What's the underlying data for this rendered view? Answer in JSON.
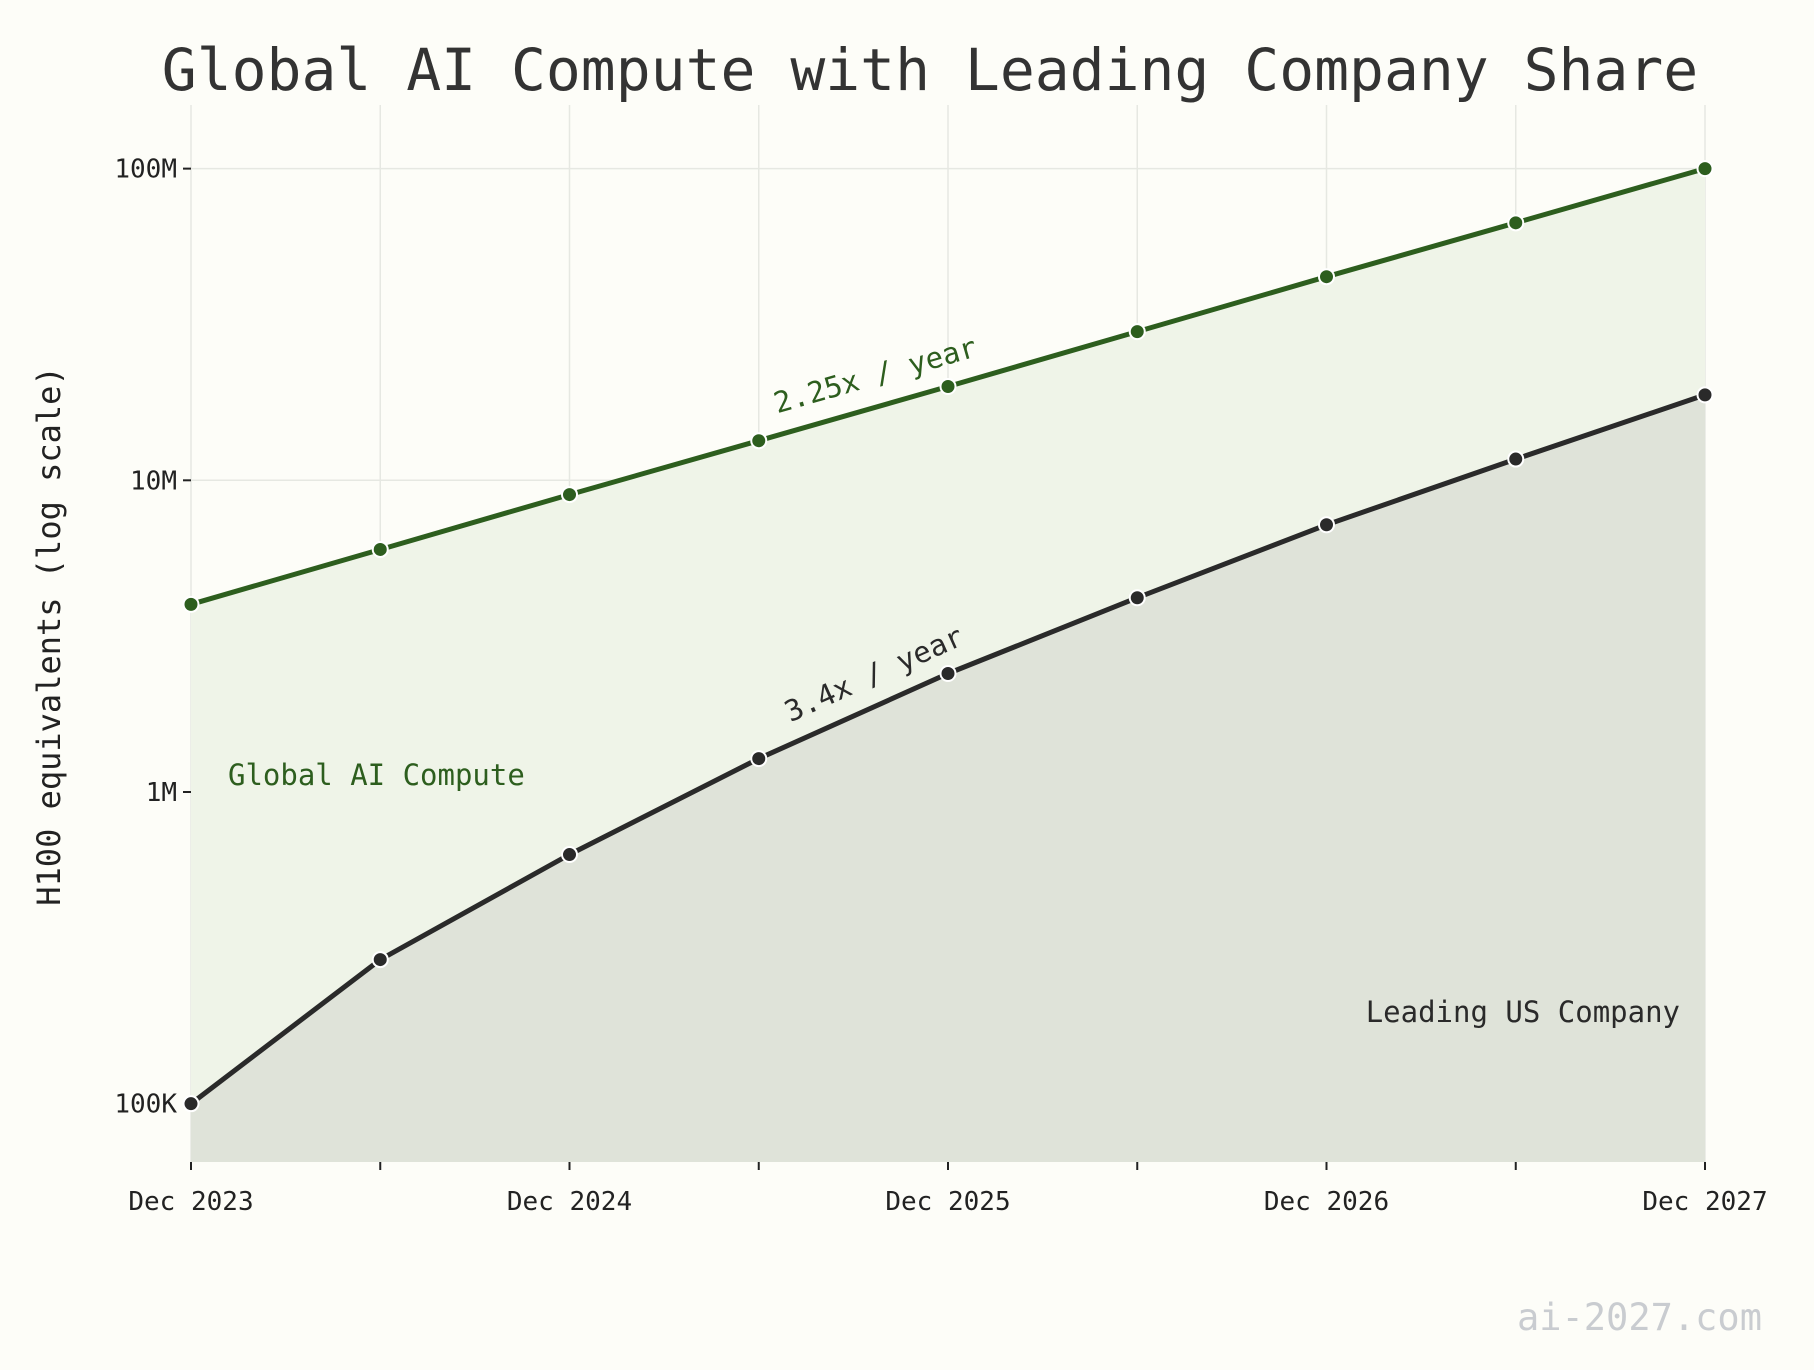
{
  "chart_data": {
    "type": "area",
    "title": "Global AI Compute with Leading Company Share",
    "ylabel": "H100 equivalents (log scale)",
    "xlabel": "",
    "y_scale": "log",
    "ylim": [
      65000,
      160000000
    ],
    "x_ticks": [
      "Dec 2023",
      "Dec 2024",
      "Dec 2025",
      "Dec 2026",
      "Dec 2027"
    ],
    "y_ticks": [
      {
        "value": 100000,
        "label": "100K"
      },
      {
        "value": 1000000,
        "label": "1M"
      },
      {
        "value": 10000000,
        "label": "10M"
      },
      {
        "value": 100000000,
        "label": "100M"
      }
    ],
    "x": [
      "2023-12",
      "2024-06",
      "2024-12",
      "2025-06",
      "2025-12",
      "2026-06",
      "2026-12",
      "2027-06",
      "2027-12"
    ],
    "grid": true,
    "series": [
      {
        "name": "Global AI Compute",
        "color": "#2d5e1e",
        "fill": "#eff4e8",
        "values": [
          4000000,
          6000000,
          9000000,
          13400000,
          20000000,
          30000000,
          45000000,
          67000000,
          100000000
        ]
      },
      {
        "name": "Leading US Company",
        "color": "#2a2a2a",
        "fill": "#dfe3d9",
        "values": [
          100000,
          290000,
          630000,
          1280000,
          2400000,
          4200000,
          7200000,
          11700000,
          18800000
        ]
      }
    ],
    "annotations": [
      {
        "text": "2.25x / year",
        "series": 0,
        "color": "#2d5e1e"
      },
      {
        "text": "3.4x / year",
        "series": 1,
        "color": "#2a2a2a"
      }
    ]
  },
  "watermark": "ai-2027.com"
}
